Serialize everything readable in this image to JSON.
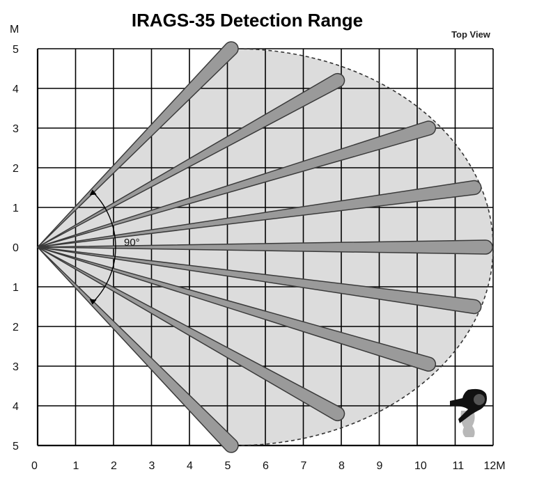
{
  "title": "IRAGS-35 Detection Range",
  "view_label": "Top View",
  "axes": {
    "y_unit": "M",
    "x_ticks": [
      "0",
      "1",
      "2",
      "3",
      "4",
      "5",
      "6",
      "7",
      "8",
      "9",
      "10",
      "11",
      "12M"
    ],
    "y_ticks": [
      "5",
      "4",
      "3",
      "2",
      "1",
      "0",
      "1",
      "2",
      "3",
      "4",
      "5"
    ]
  },
  "detection": {
    "angle_label": "90°",
    "origin": [
      0,
      0
    ],
    "boundary_radius_m": 12,
    "boundary_half_width_m": 5,
    "beams": [
      {
        "tip": [
          5.1,
          5.0
        ]
      },
      {
        "tip": [
          7.9,
          4.2
        ]
      },
      {
        "tip": [
          10.3,
          3.0
        ]
      },
      {
        "tip": [
          11.5,
          1.5
        ]
      },
      {
        "tip": [
          11.8,
          0.0
        ]
      },
      {
        "tip": [
          11.5,
          -1.5
        ]
      },
      {
        "tip": [
          10.3,
          -2.95
        ]
      },
      {
        "tip": [
          7.9,
          -4.2
        ]
      },
      {
        "tip": [
          5.1,
          -5.0
        ]
      }
    ]
  },
  "colors": {
    "grid": "#000000",
    "zone_fill": "#dcdcdc",
    "beam_fill": "#9a9a9a",
    "beam_stroke": "#3a3a3a",
    "boundary": "#333333"
  },
  "person_icon": "person-walking-icon"
}
